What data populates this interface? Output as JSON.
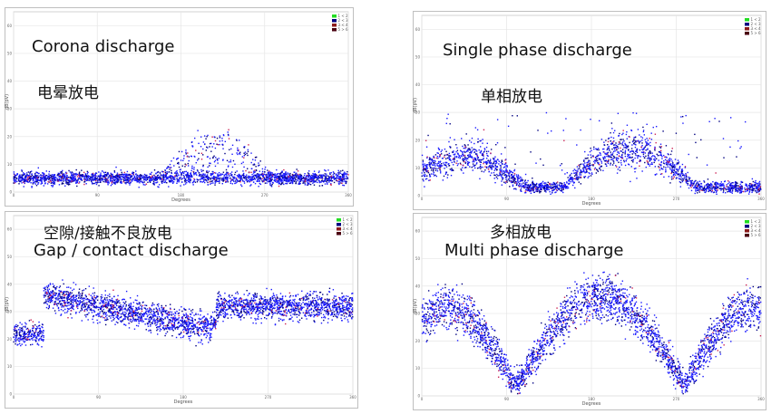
{
  "axes": {
    "xlabel": "Degrees",
    "ylabel": "dB(pV)",
    "xticks": [
      "0",
      "90",
      "180",
      "270",
      "360"
    ],
    "yticks": [
      "0",
      "10",
      "20",
      "30",
      "40",
      "50",
      "60"
    ]
  },
  "legend": [
    "1 < 2",
    "2 < 3",
    "3 < 4",
    "5 > 6"
  ],
  "colors": {
    "dots_main": "#1a1aff",
    "dots_dense": "#000080",
    "dots_hot": "#cc2255",
    "legend_1": "#22dd22",
    "legend_2": "#000080",
    "legend_3": "#8b1a1a",
    "legend_4": "#4a0010"
  },
  "panels": [
    {
      "caption_en": "Corona discharge",
      "caption_zh": "电晕放电",
      "chart_data": {
        "type": "scatter",
        "description_shape": "flat band near 5 across all phases plus a raised cloud peaking near 20 around 160-270 deg",
        "xlim": [
          0,
          360
        ],
        "ylim": [
          0,
          65
        ],
        "bands": [
          {
            "x_from": 0,
            "x_to": 360,
            "y_center": 5,
            "y_spread": 3
          },
          {
            "x_from": 165,
            "x_to": 270,
            "y_center": 14,
            "y_spread": 7
          }
        ]
      }
    },
    {
      "caption_en": "Single phase discharge",
      "caption_zh": "单相放电",
      "chart_data": {
        "type": "scatter",
        "xlim": [
          0,
          360
        ],
        "ylim": [
          0,
          65
        ],
        "bands": [
          {
            "x_from": 0,
            "x_to": 360,
            "y_center": 3,
            "y_spread": 2
          },
          {
            "x_from": 0,
            "x_to": 90,
            "y_center": 13,
            "y_spread": 6
          },
          {
            "x_from": 160,
            "x_to": 270,
            "y_center": 15,
            "y_spread": 7
          }
        ]
      }
    },
    {
      "caption_en": "Gap / contact discharge",
      "caption_zh": "空隙/接触不良放电",
      "chart_data": {
        "type": "scatter",
        "xlim": [
          0,
          360
        ],
        "ylim": [
          0,
          65
        ],
        "bands": [
          {
            "x_from": 0,
            "x_to": 30,
            "y_center": 22,
            "y_spread": 5
          },
          {
            "x_from": 30,
            "x_to": 205,
            "y_center": 33,
            "y_spread": 7
          },
          {
            "x_from": 200,
            "x_to": 360,
            "y_center": 32,
            "y_spread": 6
          }
        ]
      }
    },
    {
      "caption_en": "Multi phase discharge",
      "caption_zh": "多相放电",
      "chart_data": {
        "type": "scatter",
        "xlim": [
          0,
          360
        ],
        "ylim": [
          0,
          65
        ],
        "bands": [
          {
            "x_from": 0,
            "x_to": 95,
            "y_center": 28,
            "y_spread": 10
          },
          {
            "x_from": 110,
            "x_to": 270,
            "y_center": 30,
            "y_spread": 10
          },
          {
            "x_from": 290,
            "x_to": 360,
            "y_center": 28,
            "y_spread": 10
          }
        ]
      }
    }
  ]
}
